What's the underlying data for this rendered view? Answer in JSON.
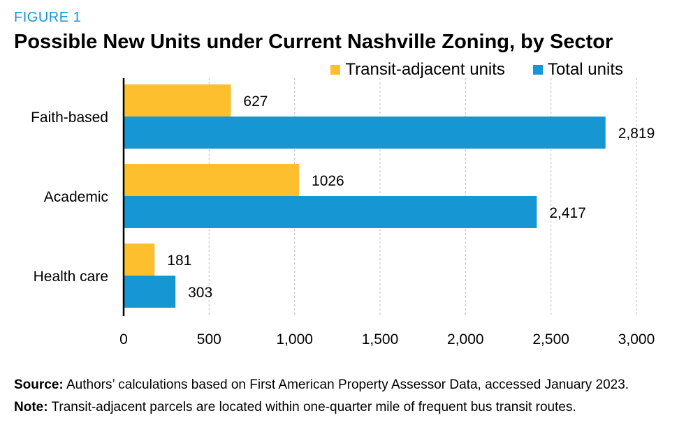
{
  "figure_label": "FIGURE 1",
  "colors": {
    "transit": "#fdbf2d",
    "total": "#1696d2",
    "label_accent": "#1696d2",
    "grid": "#c8c8c8"
  },
  "legend": {
    "transit_label": "Transit-adjacent units",
    "total_label": "Total units"
  },
  "chart_data": {
    "type": "bar",
    "orientation": "horizontal",
    "title": "Possible New Units under Current Nashville Zoning, by Sector",
    "categories": [
      "Faith-based",
      "Academic",
      "Health care"
    ],
    "series": [
      {
        "name": "Transit-adjacent units",
        "values": [
          627,
          1026,
          181
        ],
        "labels": [
          "627",
          "1026",
          "181"
        ]
      },
      {
        "name": "Total units",
        "values": [
          2819,
          2417,
          303
        ],
        "labels": [
          "2,819",
          "2,417",
          "303"
        ]
      }
    ],
    "xlim": [
      0,
      3000
    ],
    "xticks": [
      0,
      500,
      1000,
      1500,
      2000,
      2500,
      3000
    ],
    "xtick_labels": [
      "0",
      "500",
      "1,000",
      "1,500",
      "2,000",
      "2,500",
      "3,000"
    ],
    "xlabel": "",
    "ylabel": "",
    "grid": true,
    "legend_position": "top-right"
  },
  "footnotes": {
    "source_prefix": "Source:",
    "source_text": " Authors’ calculations based on First American Property Assessor Data, accessed January 2023.",
    "note_prefix": "Note:",
    "note_text": " Transit-adjacent parcels are located within one-quarter mile of frequent bus transit routes."
  }
}
